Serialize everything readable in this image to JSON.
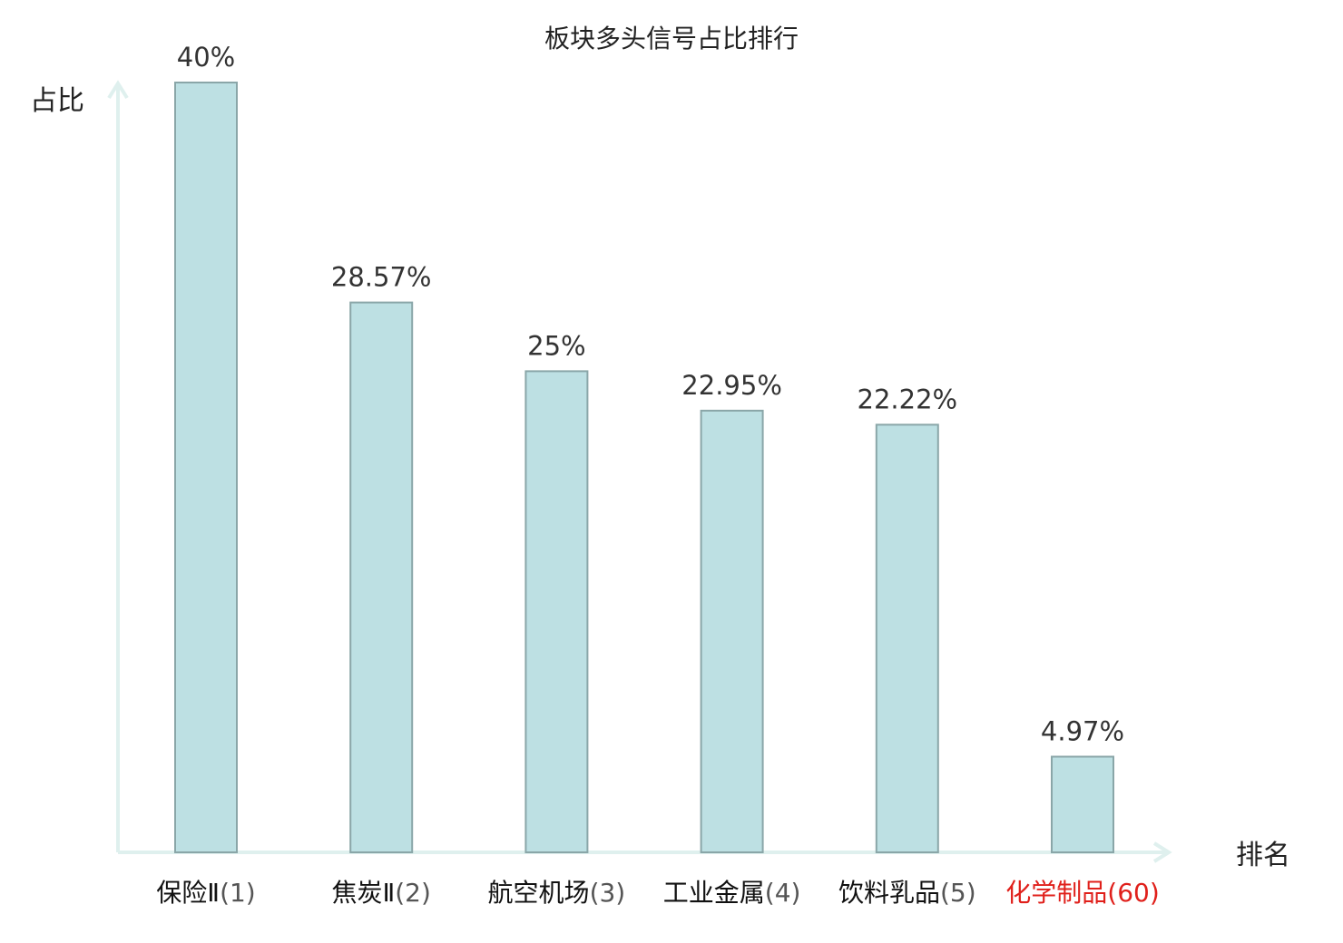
{
  "chart_data": {
    "type": "bar",
    "title": "板块多头信号占比排行",
    "ylabel": "占比",
    "xlabel": "排名",
    "categories": [
      {
        "name": "保险Ⅱ",
        "rank": "(1)",
        "highlight": false
      },
      {
        "name": "焦炭Ⅱ",
        "rank": "(2)",
        "highlight": false
      },
      {
        "name": "航空机场",
        "rank": "(3)",
        "highlight": false
      },
      {
        "name": "工业金属",
        "rank": "(4)",
        "highlight": false
      },
      {
        "name": "饮料乳品",
        "rank": "(5)",
        "highlight": false
      },
      {
        "name": "化学制品",
        "rank": "(60)",
        "highlight": true
      }
    ],
    "values": [
      40,
      28.57,
      25,
      22.95,
      22.22,
      4.97
    ],
    "value_labels": [
      "40%",
      "28.57%",
      "25%",
      "22.95%",
      "22.22%",
      "4.97%"
    ],
    "ylim": [
      0,
      40
    ],
    "grid": false,
    "colors": {
      "bar_fill": "#bde0e3",
      "bar_stroke": "#8aa6a8",
      "axis": "#dff0ee",
      "highlight": "#e0201b",
      "rank_normal": "#555555",
      "name_normal": "#111111"
    }
  }
}
